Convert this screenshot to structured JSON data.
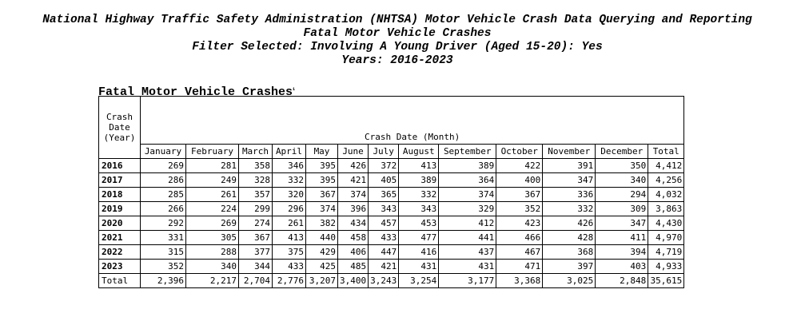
{
  "header": {
    "agency": "National Highway Traffic Safety Administration (NHTSA) Motor Vehicle Crash Data Querying and Reporting",
    "subtitle": "Fatal Motor Vehicle Crashes",
    "filter": "Filter Selected: Involving A Young Driver (Aged 15-20): Yes",
    "years": "Years: 2016-2023"
  },
  "table": {
    "title": "Fatal Motor Vehicle Crashes",
    "footnote_mark": "1",
    "row_header": [
      "Crash",
      "Date",
      "(Year)"
    ],
    "group_header": "Crash Date (Month)",
    "columns": [
      "January",
      "February",
      "March",
      "April",
      "May",
      "June",
      "July",
      "August",
      "September",
      "October",
      "November",
      "December",
      "Total"
    ],
    "rows": [
      {
        "year": "2016",
        "values": [
          "269",
          "281",
          "358",
          "346",
          "395",
          "426",
          "372",
          "413",
          "389",
          "422",
          "391",
          "350",
          "4,412"
        ]
      },
      {
        "year": "2017",
        "values": [
          "286",
          "249",
          "328",
          "332",
          "395",
          "421",
          "405",
          "389",
          "364",
          "400",
          "347",
          "340",
          "4,256"
        ]
      },
      {
        "year": "2018",
        "values": [
          "285",
          "261",
          "357",
          "320",
          "367",
          "374",
          "365",
          "332",
          "374",
          "367",
          "336",
          "294",
          "4,032"
        ]
      },
      {
        "year": "2019",
        "values": [
          "266",
          "224",
          "299",
          "296",
          "374",
          "396",
          "343",
          "343",
          "329",
          "352",
          "332",
          "309",
          "3,863"
        ]
      },
      {
        "year": "2020",
        "values": [
          "292",
          "269",
          "274",
          "261",
          "382",
          "434",
          "457",
          "453",
          "412",
          "423",
          "426",
          "347",
          "4,430"
        ]
      },
      {
        "year": "2021",
        "values": [
          "331",
          "305",
          "367",
          "413",
          "440",
          "458",
          "433",
          "477",
          "441",
          "466",
          "428",
          "411",
          "4,970"
        ]
      },
      {
        "year": "2022",
        "values": [
          "315",
          "288",
          "377",
          "375",
          "429",
          "406",
          "447",
          "416",
          "437",
          "467",
          "368",
          "394",
          "4,719"
        ]
      },
      {
        "year": "2023",
        "values": [
          "352",
          "340",
          "344",
          "433",
          "425",
          "485",
          "421",
          "431",
          "431",
          "471",
          "397",
          "403",
          "4,933"
        ]
      }
    ],
    "total_row": {
      "label": "Total",
      "values": [
        "2,396",
        "2,217",
        "2,704",
        "2,776",
        "3,207",
        "3,400",
        "3,243",
        "3,254",
        "3,177",
        "3,368",
        "3,025",
        "2,848",
        "35,615"
      ]
    }
  }
}
